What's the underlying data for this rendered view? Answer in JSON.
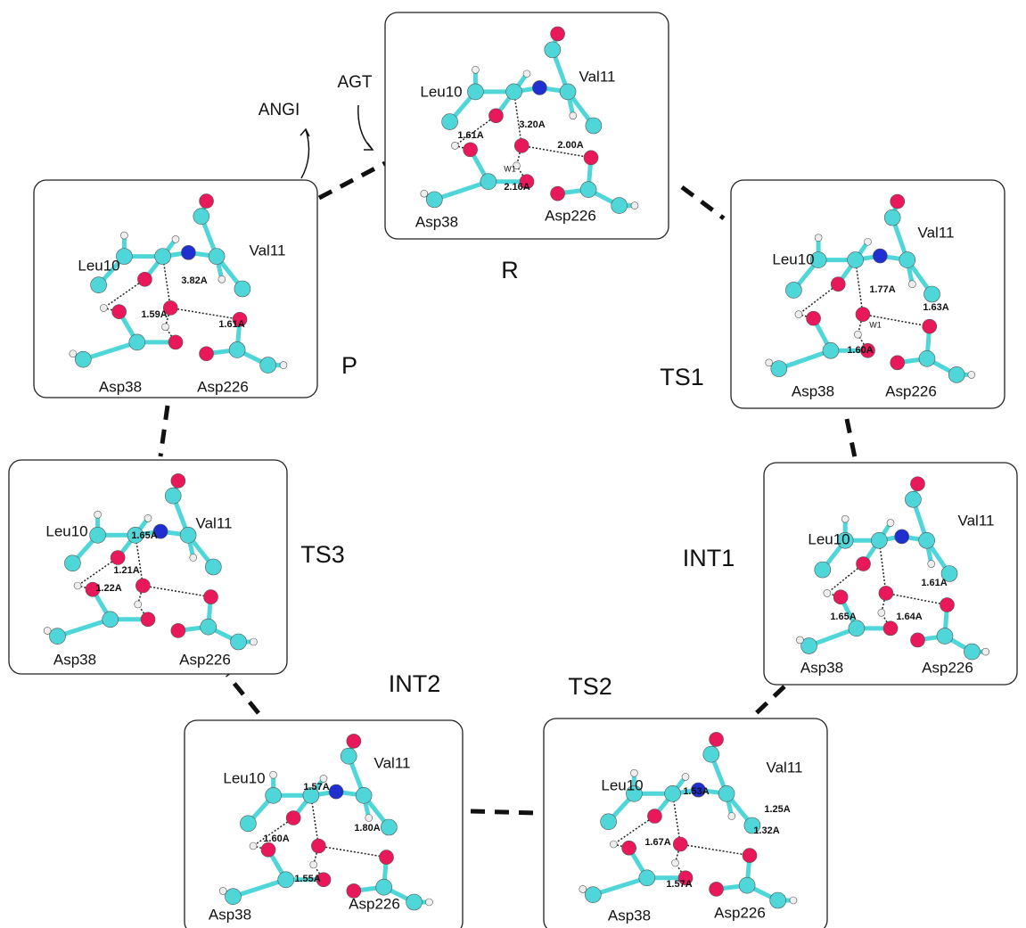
{
  "annotations": {
    "agt": "AGT",
    "angi": "ANGI"
  },
  "panels": [
    {
      "label": "R",
      "residues": [
        "Leu10",
        "Val11",
        "Asp38",
        "Asp226"
      ],
      "distances": [
        "1.61A",
        "3.20A",
        "2.00A",
        "2.16A"
      ],
      "water": "W1"
    },
    {
      "label": "TS1",
      "residues": [
        "Leu10",
        "Val11",
        "Asp38",
        "Asp226"
      ],
      "distances": [
        "1.77A",
        "1.63A",
        "1.60A"
      ],
      "water": "W1"
    },
    {
      "label": "INT1",
      "residues": [
        "Leu10",
        "Val11",
        "Asp38",
        "Asp226"
      ],
      "distances": [
        "1.61A",
        "1.65A",
        "1.64A"
      ]
    },
    {
      "label": "TS2",
      "residues": [
        "Leu10",
        "Val11",
        "Asp38",
        "Asp226"
      ],
      "distances": [
        "1.53A",
        "1.25A",
        "1.32A",
        "1.67A",
        "1.57A"
      ]
    },
    {
      "label": "INT2",
      "residues": [
        "Leu10",
        "Val11",
        "Asp38",
        "Asp226"
      ],
      "distances": [
        "1.57A",
        "1.80A",
        "1.60A",
        "1.55A"
      ]
    },
    {
      "label": "TS3",
      "residues": [
        "Leu10",
        "Val11",
        "Asp38",
        "Asp226"
      ],
      "distances": [
        "1.65A",
        "1.21A",
        "1.22A"
      ]
    },
    {
      "label": "P",
      "residues": [
        "Leu10",
        "Val11",
        "Asp38",
        "Asp226"
      ],
      "distances": [
        "3.82A",
        "1.59A",
        "1.61A"
      ]
    }
  ]
}
